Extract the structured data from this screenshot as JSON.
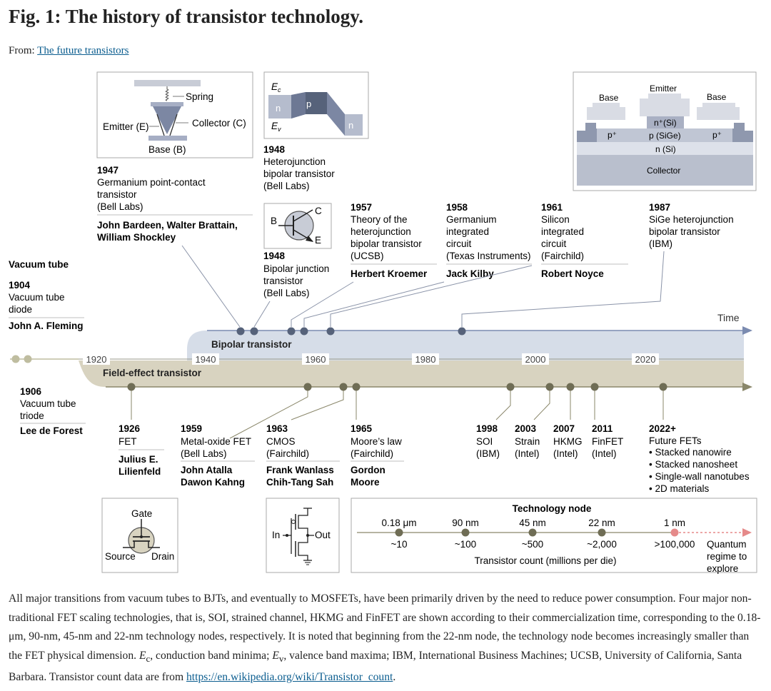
{
  "page": {
    "title": "Fig. 1: The history of transistor technology.",
    "from_label": "From:",
    "from_link": "The future transistors"
  },
  "colors": {
    "bipolar_band": "#d6dde8",
    "fet_band": "#d8d3c0",
    "dot_dark": "#56627a",
    "dot_olive": "#6f6d55",
    "dot_vacuum": "#bfbda0",
    "quantum": "#e58a8a"
  },
  "timeline": {
    "time_label": "Time",
    "bipolar_label": "Bipolar transistor",
    "fet_label": "Field-effect transistor",
    "years": [
      "1920",
      "1940",
      "1960",
      "1980",
      "2000",
      "2020"
    ]
  },
  "vacuum": {
    "header": "Vacuum tube",
    "diode": {
      "year": "1904",
      "lines": [
        "Vacuum tube",
        "diode"
      ],
      "person": "John A. Fleming"
    },
    "triode": {
      "year": "1906",
      "lines": [
        "Vacuum tube",
        "triode"
      ],
      "person": "Lee de Forest"
    }
  },
  "point_contact_panel": {
    "labels": [
      "Spring",
      "Emitter (E)",
      "Collector (C)",
      "Base (B)"
    ]
  },
  "heterojunction_panel": {
    "labels": [
      "E",
      "c",
      "E",
      "v",
      "n",
      "p",
      "n"
    ]
  },
  "bjt_symbol": {
    "labels": [
      "B",
      "C",
      "E"
    ]
  },
  "sige_panel": {
    "labels": [
      "Emitter",
      "Base",
      "Base",
      "n⁺(Si)",
      "p⁺",
      "p (SiGe)",
      "p⁺",
      "n (Si)",
      "Collector"
    ]
  },
  "bipolar_events": [
    {
      "year": "1947",
      "lines": [
        "Germanium point-contact",
        "transistor",
        "(Bell Labs)"
      ],
      "people": [
        "John Bardeen, Walter Brattain,",
        "William Shockley"
      ]
    },
    {
      "year": "1948",
      "lines": [
        "Heterojunction",
        "bipolar transistor",
        "(Bell Labs)"
      ],
      "people": []
    },
    {
      "year": "1948",
      "lines": [
        "Bipolar junction",
        "transistor",
        "(Bell Labs)"
      ],
      "people": []
    },
    {
      "year": "1957",
      "lines": [
        "Theory of the",
        "heterojunction",
        "bipolar transistor",
        "(UCSB)"
      ],
      "people": [
        "Herbert Kroemer"
      ]
    },
    {
      "year": "1958",
      "lines": [
        "Germanium",
        "integrated",
        "circuit",
        "(Texas Instruments)"
      ],
      "people": [
        "Jack Kilby"
      ]
    },
    {
      "year": "1961",
      "lines": [
        "Silicon",
        "integrated",
        "circuit",
        "(Fairchild)"
      ],
      "people": [
        "Robert Noyce"
      ]
    },
    {
      "year": "1987",
      "lines": [
        "SiGe heterojunction",
        "bipolar transistor",
        "(IBM)"
      ],
      "people": []
    }
  ],
  "fet_events": [
    {
      "year": "1926",
      "lines": [
        "FET"
      ],
      "people": [
        "Julius E.",
        "Lilienfeld"
      ]
    },
    {
      "year": "1959",
      "lines": [
        "Metal-oxide FET",
        "(Bell Labs)"
      ],
      "people": [
        "John Atalla",
        "Dawon Kahng"
      ]
    },
    {
      "year": "1963",
      "lines": [
        "CMOS",
        "(Fairchild)"
      ],
      "people": [
        "Frank Wanlass",
        "Chih-Tang Sah"
      ]
    },
    {
      "year": "1965",
      "lines": [
        "Moore’s law",
        "(Fairchild)"
      ],
      "people": [
        "Gordon",
        "Moore"
      ]
    },
    {
      "year": "1998",
      "lines": [
        "SOI",
        "(IBM)"
      ],
      "people": []
    },
    {
      "year": "2003",
      "lines": [
        "Strain",
        "(Intel)"
      ],
      "people": []
    },
    {
      "year": "2007",
      "lines": [
        "HKMG",
        "(Intel)"
      ],
      "people": []
    },
    {
      "year": "2011",
      "lines": [
        "FinFET",
        "(Intel)"
      ],
      "people": []
    },
    {
      "year": "2022+",
      "lines": [
        "Future FETs",
        "• Stacked nanowire",
        "• Stacked nanosheet",
        "• Single-wall nanotubes",
        "• 2D materials"
      ],
      "people": []
    }
  ],
  "fet_symbol": {
    "labels": [
      "Gate",
      "Source",
      "Drain"
    ]
  },
  "cmos_symbol": {
    "labels": [
      "In",
      "Out"
    ]
  },
  "technology_node": {
    "title": "Technology node",
    "nodes": [
      {
        "node": "0.18 μm",
        "count": "~10"
      },
      {
        "node": "90 nm",
        "count": "~100"
      },
      {
        "node": "45 nm",
        "count": "~500"
      },
      {
        "node": "22 nm",
        "count": "~2,000"
      },
      {
        "node": "1 nm",
        "count": ">100,000"
      }
    ],
    "axis_label": "Transistor count (millions per die)",
    "quantum_lines": [
      "Quantum",
      "regime to",
      "explore"
    ]
  },
  "caption": {
    "p1": "All major transitions from vacuum tubes to BJTs, and eventually to MOSFETs, have been primarily driven by the need to reduce power consumption. Four major non-traditional FET scaling technologies, that is, SOI, strained channel, HKMG and FinFET are shown according to their commercialization time, corresponding to the 0.18-μm, 90-nm, 45-nm and 22-nm technology nodes, respectively. It is noted that beginning from the 22-nm node, the technology node becomes increasingly smaller than the FET physical dimension. ",
    "ec_sym": "E",
    "ec_sub": "c",
    "ec_text": ", conduction band minima; ",
    "ev_sym": "E",
    "ev_sub": "v",
    "ev_text": ", valence band maxima; IBM, International Business Machines; UCSB, University of California, Santa Barbara. Transistor count data are from ",
    "link": "https://en.wikipedia.org/wiki/Transistor_count",
    "end": "."
  }
}
